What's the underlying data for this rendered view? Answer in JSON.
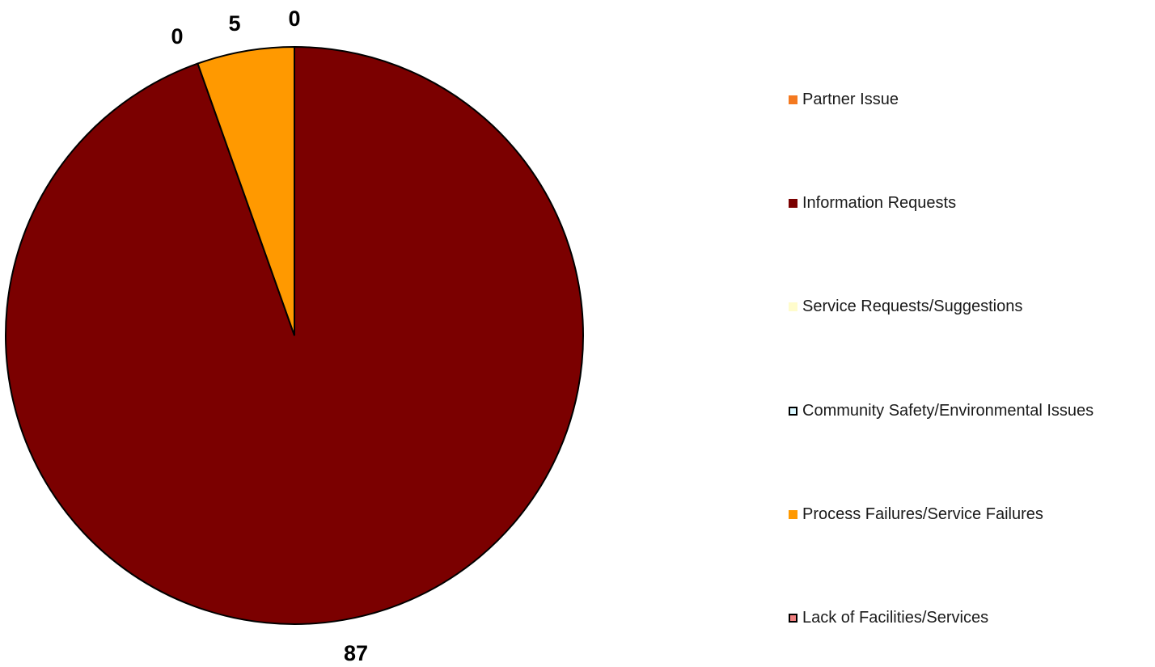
{
  "chart_data": {
    "type": "pie",
    "title": "",
    "start_angle_deg": 0,
    "direction": "clockwise",
    "slices": [
      {
        "label": "Partner Issue",
        "value": 0,
        "color": "#f47920",
        "border": "#f47920"
      },
      {
        "label": "Information Requests",
        "value": 87,
        "color": "#7b0000",
        "border": "#7b0000"
      },
      {
        "label": "Service Requests/Suggestions",
        "value": 0,
        "color": "#fffccc",
        "border": "#fffccc"
      },
      {
        "label": "Community Safety/Environmental Issues",
        "value": 0,
        "color": "#d9f7ff",
        "border": "#000000"
      },
      {
        "label": "Process Failures/Service Failures",
        "value": 5,
        "color": "#ff9900",
        "border": "#ff9900"
      },
      {
        "label": "Lack of Facilities/Services",
        "value": 0,
        "color": "#f08080",
        "border": "#000000"
      }
    ],
    "data_labels": [
      {
        "slice": 1,
        "text": "87"
      },
      {
        "slice": 3,
        "text": "0"
      },
      {
        "slice": 4,
        "text": "5"
      },
      {
        "slice": 5,
        "text": "0"
      }
    ],
    "legend": {
      "position": "right"
    }
  }
}
